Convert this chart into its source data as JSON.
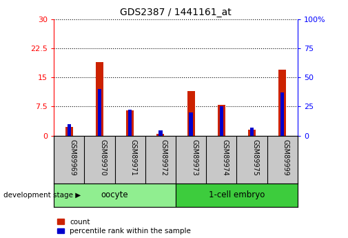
{
  "title": "GDS2387 / 1441161_at",
  "samples": [
    "GSM89969",
    "GSM89970",
    "GSM89971",
    "GSM89972",
    "GSM89973",
    "GSM89974",
    "GSM89975",
    "GSM89999"
  ],
  "count_values": [
    2.3,
    19.0,
    6.5,
    0.4,
    11.5,
    8.0,
    1.5,
    17.0
  ],
  "percentile_values": [
    10.0,
    40.0,
    22.0,
    4.5,
    20.0,
    25.0,
    7.0,
    37.0
  ],
  "left_ylim": [
    0,
    30
  ],
  "right_ylim": [
    0,
    100
  ],
  "left_yticks": [
    0,
    7.5,
    15,
    22.5,
    30
  ],
  "right_yticks": [
    0,
    25,
    50,
    75,
    100
  ],
  "left_ytick_labels": [
    "0",
    "7.5",
    "15",
    "22.5",
    "30"
  ],
  "right_ytick_labels": [
    "0",
    "25",
    "50",
    "75",
    "100%"
  ],
  "groups": [
    {
      "label": "oocyte",
      "start": 0,
      "end": 4,
      "color": "#90ee90"
    },
    {
      "label": "1-cell embryo",
      "start": 4,
      "end": 8,
      "color": "#3dcc3d"
    }
  ],
  "bar_color_red": "#cc2200",
  "bar_color_blue": "#0000cc",
  "xlabel_stage": "development stage",
  "legend_count": "count",
  "legend_percentile": "percentile rank within the sample",
  "grid_color": "black",
  "label_box_color": "#c8c8c8"
}
